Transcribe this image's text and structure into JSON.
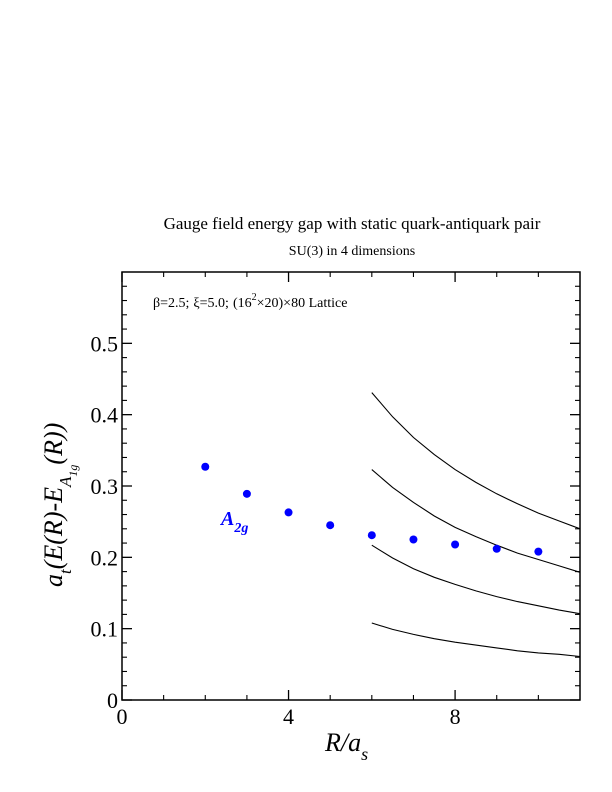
{
  "chart_data": {
    "type": "scatter",
    "title": "Gauge field energy gap with static quark-antiquark pair",
    "subtitle": "SU(3) in 4 dimensions",
    "annotation": {
      "beta": "β=2.5;",
      "xi": "ξ=5.0;",
      "lattice_open": "(16",
      "lattice_exp": "2",
      "lattice_close": "×20)×80 Lattice"
    },
    "xlabel": {
      "main": "R/a",
      "sub": "s"
    },
    "ylabel": {
      "a": "a",
      "t": "t",
      "mid": "(E(R)-E",
      "A": "A",
      "sub": "1g",
      "end": "(R))"
    },
    "xlim": [
      0,
      11
    ],
    "ylim": [
      0,
      0.6
    ],
    "x_ticks_major": [
      0,
      4,
      8
    ],
    "x_ticks_minor": [
      1,
      2,
      3,
      5,
      6,
      7,
      9,
      10,
      11
    ],
    "y_ticks_major": [
      0,
      0.1,
      0.2,
      0.3,
      0.4,
      0.5
    ],
    "y_tick_labels": [
      "0",
      "0.1",
      "0.2",
      "0.3",
      "0.4",
      "0.5"
    ],
    "x_tick_labels": [
      "0",
      "4",
      "8"
    ],
    "series": [
      {
        "name": "A2g",
        "label_main": "A",
        "label_sub": "2g",
        "color": "#0000ff",
        "x": [
          2,
          3,
          4,
          5,
          6,
          7,
          8,
          9,
          10
        ],
        "y": [
          0.327,
          0.289,
          0.263,
          0.245,
          0.231,
          0.225,
          0.218,
          0.212,
          0.208
        ]
      }
    ],
    "curves": [
      {
        "x": [
          6,
          6.5,
          7,
          7.5,
          8,
          8.5,
          9,
          9.5,
          10,
          10.5,
          11
        ],
        "y": [
          0.108,
          0.099,
          0.092,
          0.086,
          0.081,
          0.077,
          0.073,
          0.069,
          0.066,
          0.064,
          0.061
        ]
      },
      {
        "x": [
          6,
          6.5,
          7,
          7.5,
          8,
          8.5,
          9,
          9.5,
          10,
          10.5,
          11
        ],
        "y": [
          0.217,
          0.199,
          0.184,
          0.172,
          0.162,
          0.153,
          0.145,
          0.138,
          0.132,
          0.126,
          0.121
        ]
      },
      {
        "x": [
          6,
          6.5,
          7,
          7.5,
          8,
          8.5,
          9,
          9.5,
          10,
          10.5,
          11
        ],
        "y": [
          0.323,
          0.298,
          0.277,
          0.258,
          0.242,
          0.229,
          0.217,
          0.206,
          0.197,
          0.188,
          0.179
        ]
      },
      {
        "x": [
          6,
          6.5,
          7,
          7.5,
          8,
          8.5,
          9,
          9.5,
          10,
          10.5,
          11
        ],
        "y": [
          0.431,
          0.397,
          0.368,
          0.344,
          0.323,
          0.305,
          0.289,
          0.275,
          0.262,
          0.251,
          0.24
        ]
      }
    ],
    "grid": false,
    "legend": "inline-left"
  }
}
